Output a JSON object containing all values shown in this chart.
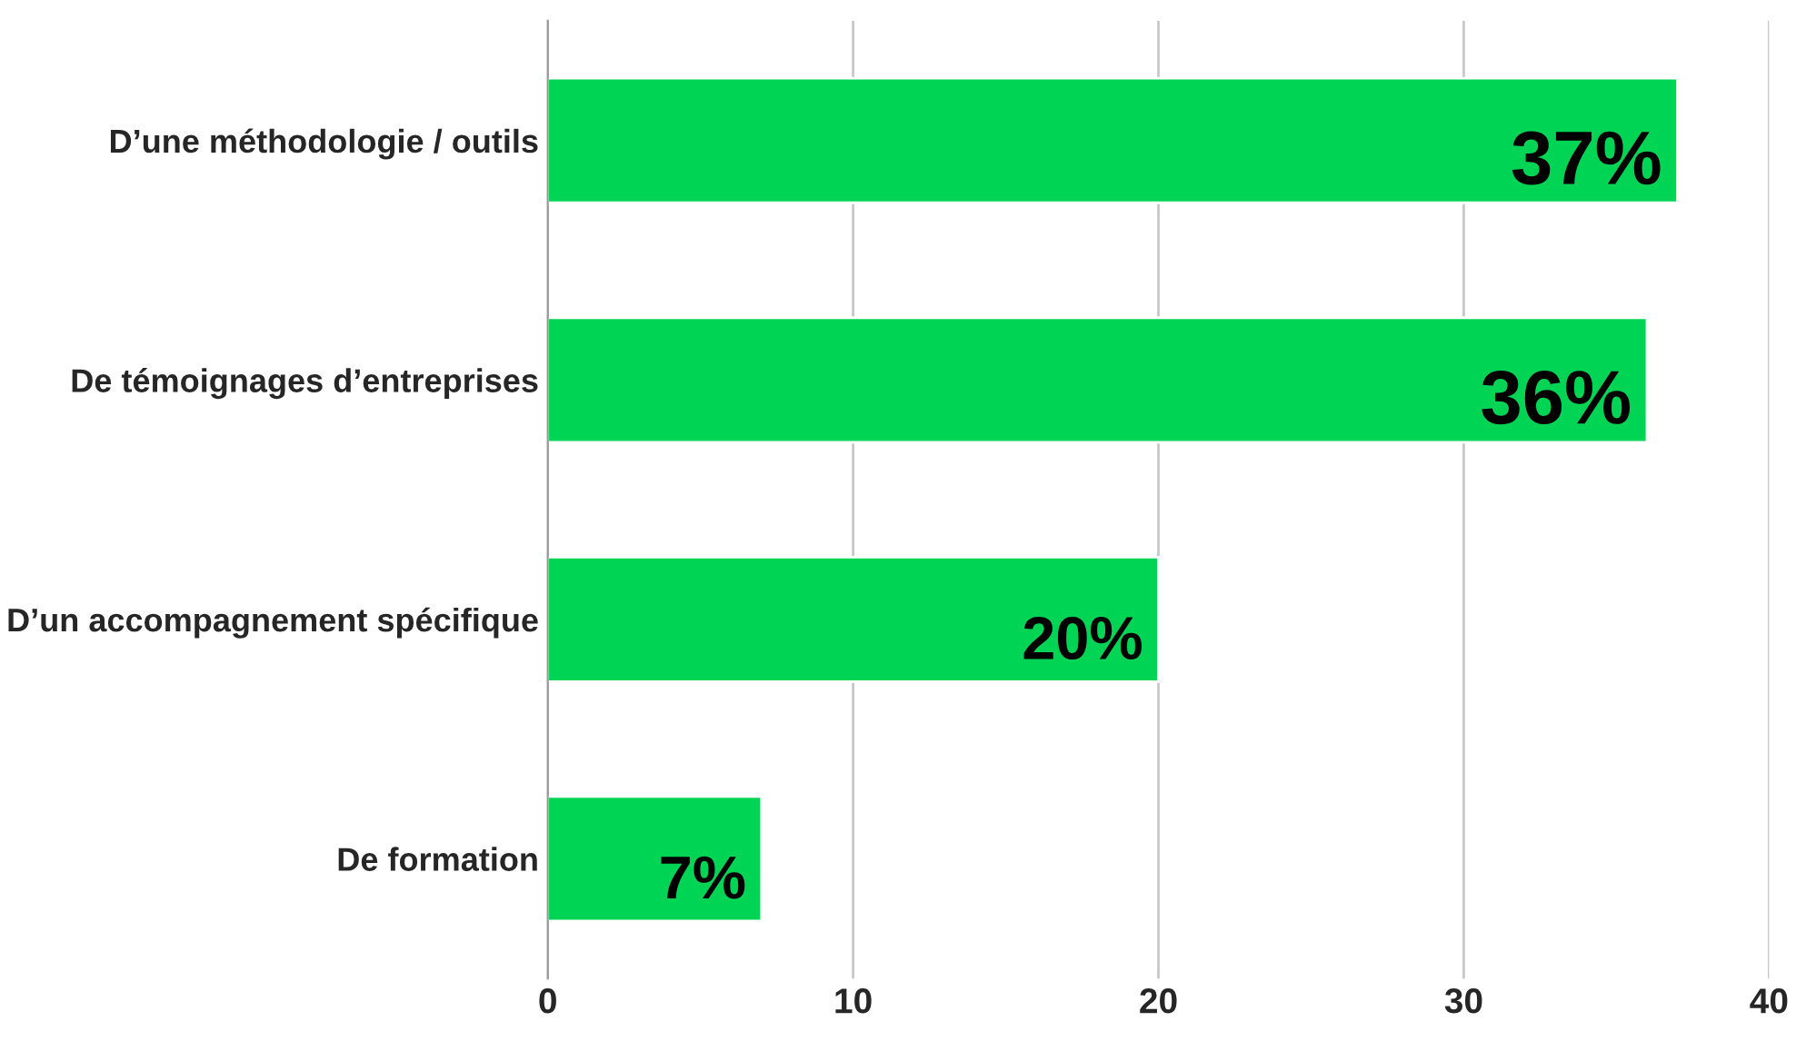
{
  "chart_data": {
    "type": "bar",
    "orientation": "horizontal",
    "categories": [
      "D’une méthodologie / outils",
      "De témoignages d’entreprises",
      "D’un accompagnement spécifique",
      "De formation"
    ],
    "values": [
      37,
      36,
      20,
      7
    ],
    "value_labels": [
      "37%",
      "36%",
      "20%",
      "7%"
    ],
    "color": "#00d455",
    "xlim": [
      0,
      40
    ],
    "xticks": [
      0,
      10,
      20,
      30,
      40
    ],
    "grid": "x"
  }
}
